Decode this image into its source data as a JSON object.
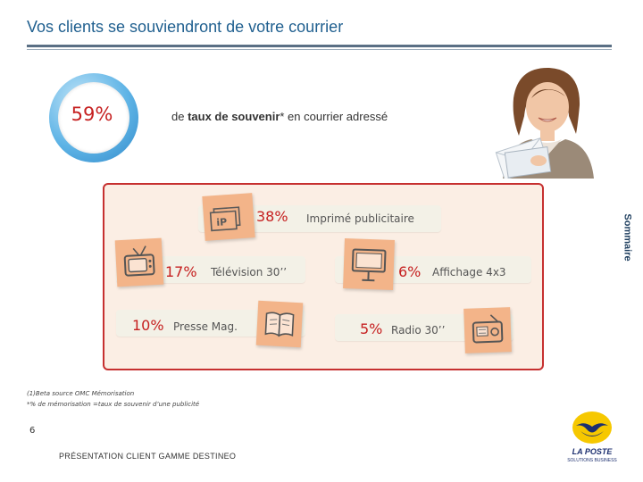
{
  "header": {
    "title": "Vos clients se souviendront de votre courrier"
  },
  "stat": {
    "value": "59%",
    "text_pre": "de ",
    "text_bold": "taux de souvenir",
    "text_post": "* en courrier adressé"
  },
  "sidebar": {
    "label": "Sommaire"
  },
  "media": [
    {
      "pct": "38%",
      "label": "Imprimé publicitaire",
      "icon": "ip-sign-icon"
    },
    {
      "pct": "17%",
      "label": "Télévision 30’’",
      "icon": "tv-icon"
    },
    {
      "pct": "6%",
      "label": "Affichage 4x3",
      "icon": "billboard-icon"
    },
    {
      "pct": "10%",
      "label": "Presse Mag.",
      "icon": "magazine-icon"
    },
    {
      "pct": "5%",
      "label": "Radio 30’’",
      "icon": "radio-icon"
    }
  ],
  "icon_text": {
    "ip": "iP"
  },
  "notes": {
    "source": "(1)Beta source OMC Mémorisation",
    "definition": "*% de mémorisation =taux de souvenir d’une publicité"
  },
  "footer": {
    "page": "6",
    "text": "PRÉSENTATION CLIENT GAMME DESTINEO"
  },
  "logo": {
    "name": "LA POSTE",
    "tagline": "SOLUTIONS BUSINESS"
  },
  "colors": {
    "accent_red": "#c62020",
    "title_blue": "#1f5f8f",
    "sticky": "#f3b489",
    "panel_bg": "#fbeee4"
  }
}
